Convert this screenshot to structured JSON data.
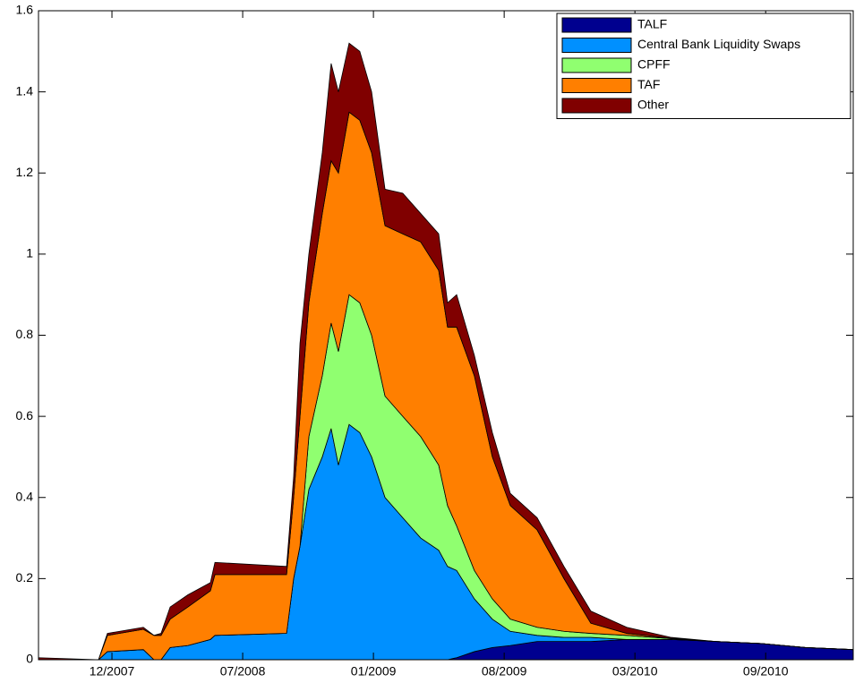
{
  "chart_data": {
    "type": "stacked_area",
    "x": [
      2007.594,
      2007.858,
      2007.897,
      2008.055,
      2008.102,
      2008.133,
      2008.173,
      2008.251,
      2008.35,
      2008.37,
      2008.685,
      2008.716,
      2008.744,
      2008.783,
      2008.842,
      2008.881,
      2008.913,
      2008.96,
      2009.007,
      2009.059,
      2009.118,
      2009.196,
      2009.275,
      2009.354,
      2009.393,
      2009.433,
      2009.511,
      2009.59,
      2009.669,
      2009.787,
      2009.905,
      2010.023,
      2010.181,
      2010.377,
      2010.574,
      2010.771,
      2010.968,
      2011.177
    ],
    "series": [
      {
        "name": "TALF",
        "color": "#00008f",
        "values": [
          0,
          0,
          0,
          0,
          0,
          0,
          0,
          0,
          0,
          0,
          0,
          0,
          0,
          0,
          0,
          0,
          0,
          0,
          0,
          0,
          0,
          0,
          0,
          0,
          0,
          0.005,
          0.02,
          0.03,
          0.035,
          0.045,
          0.045,
          0.045,
          0.05,
          0.05,
          0.045,
          0.04,
          0.03,
          0.025
        ]
      },
      {
        "name": "Central Bank Liquidity Swaps",
        "color": "#0090ff",
        "values": [
          0,
          0,
          0.02,
          0.025,
          0,
          0,
          0.03,
          0.035,
          0.05,
          0.06,
          0.065,
          0.2,
          0.28,
          0.42,
          0.5,
          0.57,
          0.48,
          0.58,
          0.56,
          0.5,
          0.4,
          0.35,
          0.3,
          0.27,
          0.23,
          0.215,
          0.13,
          0.07,
          0.035,
          0.015,
          0.01,
          0.01,
          0,
          0,
          0,
          0,
          0,
          0
        ]
      },
      {
        "name": "CPFF",
        "color": "#90ff70",
        "values": [
          0,
          0,
          0,
          0,
          0,
          0,
          0,
          0,
          0,
          0,
          0,
          0,
          0,
          0.13,
          0.2,
          0.26,
          0.28,
          0.32,
          0.32,
          0.3,
          0.25,
          0.25,
          0.25,
          0.21,
          0.15,
          0.11,
          0.07,
          0.05,
          0.03,
          0.02,
          0.015,
          0.01,
          0.01,
          0.002,
          0,
          0,
          0,
          0
        ]
      },
      {
        "name": "TAF",
        "color": "#ff7f00",
        "values": [
          0,
          0,
          0.04,
          0.05,
          0.06,
          0.06,
          0.07,
          0.095,
          0.12,
          0.15,
          0.145,
          0.2,
          0.32,
          0.33,
          0.4,
          0.4,
          0.44,
          0.45,
          0.45,
          0.45,
          0.42,
          0.45,
          0.48,
          0.48,
          0.44,
          0.49,
          0.48,
          0.35,
          0.28,
          0.24,
          0.13,
          0.025,
          0.005,
          0.001,
          0,
          0,
          0,
          0
        ]
      },
      {
        "name": "Other",
        "color": "#800000",
        "values": [
          0.005,
          0,
          0.005,
          0.005,
          0,
          0.005,
          0.03,
          0.03,
          0.02,
          0.03,
          0.02,
          0.05,
          0.18,
          0.12,
          0.15,
          0.24,
          0.2,
          0.17,
          0.17,
          0.15,
          0.09,
          0.1,
          0.07,
          0.09,
          0.06,
          0.08,
          0.05,
          0.06,
          0.03,
          0.03,
          0.03,
          0.03,
          0.015,
          0.002,
          0,
          0,
          0,
          0
        ]
      }
    ],
    "xlim": [
      2007.594,
      2011.177
    ],
    "xticks": [
      {
        "value": 2007.917,
        "label": "12/2007"
      },
      {
        "value": 2008.492,
        "label": "07/2008"
      },
      {
        "value": 2009.067,
        "label": "01/2009"
      },
      {
        "value": 2009.642,
        "label": "08/2009"
      },
      {
        "value": 2010.217,
        "label": "03/2010"
      },
      {
        "value": 2010.792,
        "label": "09/2010"
      }
    ],
    "ylim": [
      0,
      1.6
    ],
    "yticks": [
      0,
      0.2,
      0.4,
      0.6,
      0.8,
      1,
      1.2,
      1.4,
      1.6
    ],
    "legend": "upper right"
  }
}
